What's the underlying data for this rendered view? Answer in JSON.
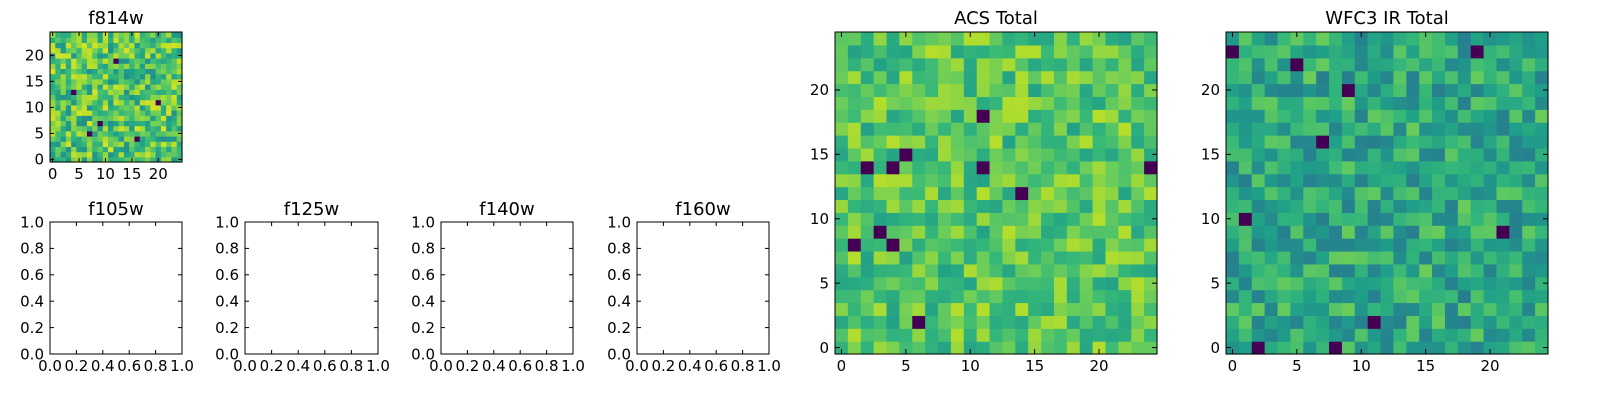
{
  "figure": {
    "background": "#ffffff",
    "colormap": "viridis"
  },
  "chart_data": [
    {
      "type": "heatmap",
      "title": "f814w",
      "grid": [
        25,
        25
      ],
      "xlim": [
        -0.5,
        24.5
      ],
      "ylim": [
        -0.5,
        24.5
      ],
      "xticks": [
        0,
        5,
        10,
        15,
        20
      ],
      "yticks": [
        0,
        5,
        10,
        15,
        20
      ],
      "xtick_labels": [
        "0",
        "5",
        "10",
        "15",
        "20"
      ],
      "ytick_labels": [
        "0",
        "5",
        "10",
        "15",
        "20"
      ],
      "value_range": [
        0,
        1
      ],
      "seed": 11,
      "mean": 0.72,
      "noise": 0.22,
      "min_pixels": [
        [
          4,
          13
        ],
        [
          9,
          7
        ],
        [
          16,
          4
        ],
        [
          12,
          19
        ],
        [
          7,
          5
        ],
        [
          20,
          11
        ]
      ]
    },
    {
      "type": "heatmap",
      "title": "ACS Total",
      "grid": [
        25,
        25
      ],
      "xlim": [
        -0.5,
        24.5
      ],
      "ylim": [
        -0.5,
        24.5
      ],
      "xticks": [
        0,
        5,
        10,
        15,
        20
      ],
      "yticks": [
        0,
        5,
        10,
        15,
        20
      ],
      "xtick_labels": [
        "0",
        "5",
        "10",
        "15",
        "20"
      ],
      "ytick_labels": [
        "0",
        "5",
        "10",
        "15",
        "20"
      ],
      "value_range": [
        0,
        1
      ],
      "seed": 5,
      "mean": 0.73,
      "noise": 0.16,
      "min_pixels": [
        [
          2,
          14
        ],
        [
          4,
          14
        ],
        [
          11,
          14
        ],
        [
          11,
          18
        ],
        [
          5,
          15
        ],
        [
          1,
          8
        ],
        [
          3,
          9
        ],
        [
          4,
          8
        ],
        [
          14,
          12
        ],
        [
          6,
          2
        ],
        [
          24,
          14
        ]
      ]
    },
    {
      "type": "heatmap",
      "title": "WFC3 IR Total",
      "grid": [
        25,
        25
      ],
      "xlim": [
        -0.5,
        24.5
      ],
      "ylim": [
        -0.5,
        24.5
      ],
      "xticks": [
        0,
        5,
        10,
        15,
        20
      ],
      "yticks": [
        0,
        5,
        10,
        15,
        20
      ],
      "xtick_labels": [
        "0",
        "5",
        "10",
        "15",
        "20"
      ],
      "ytick_labels": [
        "0",
        "5",
        "10",
        "15",
        "20"
      ],
      "value_range": [
        0,
        1
      ],
      "seed": 23,
      "mean": 0.6,
      "noise": 0.17,
      "min_pixels": [
        [
          0,
          23
        ],
        [
          2,
          0
        ],
        [
          1,
          10
        ],
        [
          5,
          22
        ],
        [
          9,
          20
        ],
        [
          7,
          16
        ],
        [
          19,
          23
        ],
        [
          11,
          2
        ],
        [
          8,
          0
        ],
        [
          21,
          9
        ]
      ]
    },
    {
      "type": "empty",
      "title": "f105w",
      "xlim": [
        0,
        1
      ],
      "ylim": [
        0,
        1
      ],
      "xtick_labels": [
        "0.0",
        "0.2",
        "0.4",
        "0.6",
        "0.8",
        "1.0"
      ],
      "ytick_labels": [
        "0.0",
        "0.2",
        "0.4",
        "0.6",
        "0.8",
        "1.0"
      ]
    },
    {
      "type": "empty",
      "title": "f125w",
      "xlim": [
        0,
        1
      ],
      "ylim": [
        0,
        1
      ],
      "xtick_labels": [
        "0.0",
        "0.2",
        "0.4",
        "0.6",
        "0.8",
        "1.0"
      ],
      "ytick_labels": [
        "0.0",
        "0.2",
        "0.4",
        "0.6",
        "0.8",
        "1.0"
      ]
    },
    {
      "type": "empty",
      "title": "f140w",
      "xlim": [
        0,
        1
      ],
      "ylim": [
        0,
        1
      ],
      "xtick_labels": [
        "0.0",
        "0.2",
        "0.4",
        "0.6",
        "0.8",
        "1.0"
      ],
      "ytick_labels": [
        "0.0",
        "0.2",
        "0.4",
        "0.6",
        "0.8",
        "1.0"
      ]
    },
    {
      "type": "empty",
      "title": "f160w",
      "xlim": [
        0,
        1
      ],
      "ylim": [
        0,
        1
      ],
      "xtick_labels": [
        "0.0",
        "0.2",
        "0.4",
        "0.6",
        "0.8",
        "1.0"
      ],
      "ytick_labels": [
        "0.0",
        "0.2",
        "0.4",
        "0.6",
        "0.8",
        "1.0"
      ]
    }
  ]
}
